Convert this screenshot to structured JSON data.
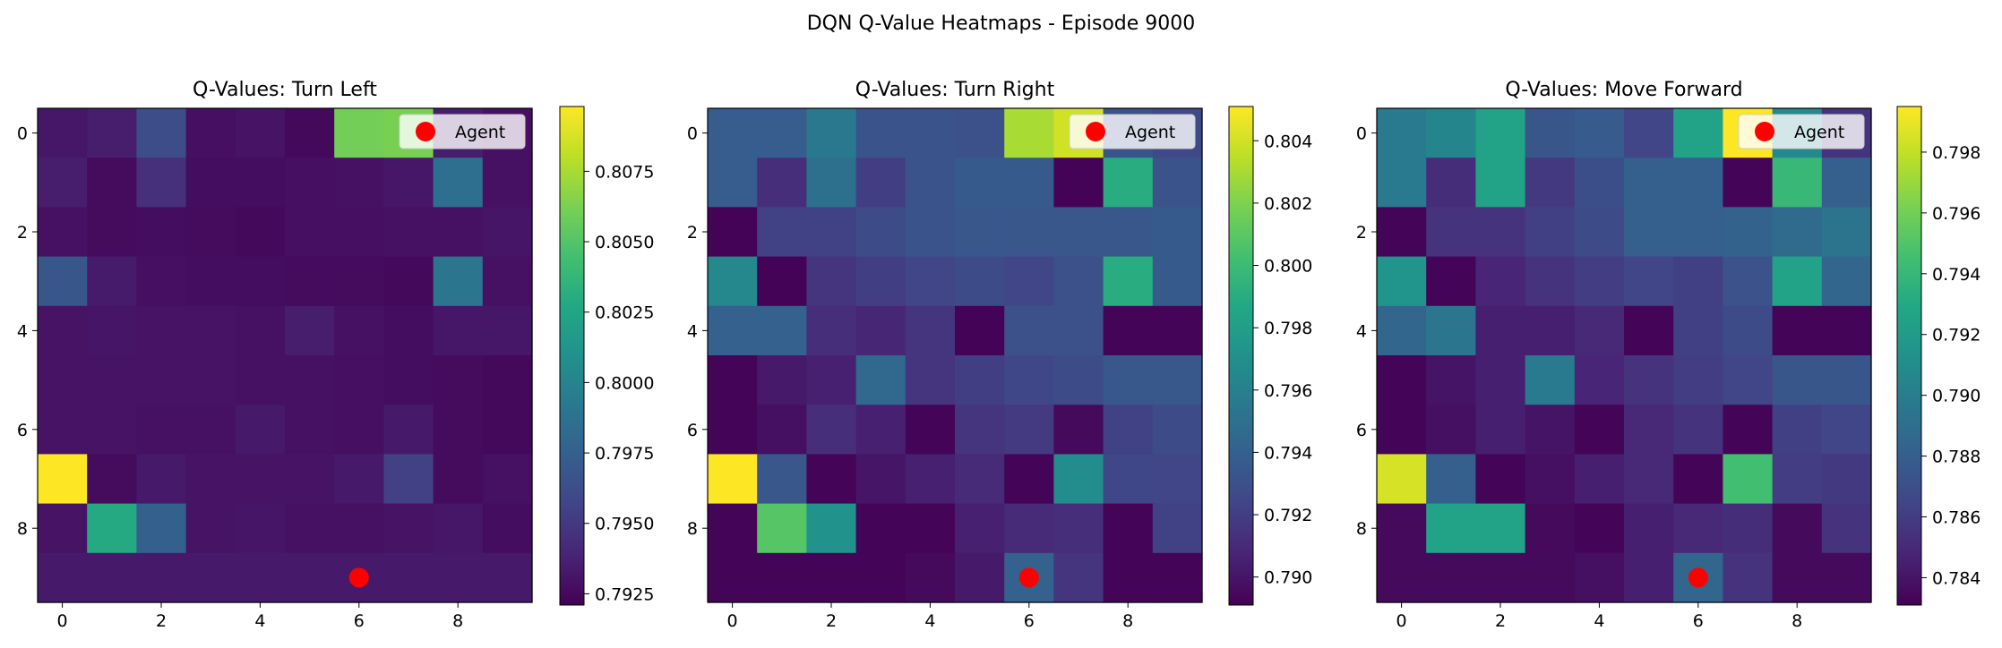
{
  "suptitle": "DQN Q-Value Heatmaps - Episode 9000",
  "colormap": "viridis",
  "chart_data": [
    {
      "type": "heatmap",
      "title": "Q-Values: Turn Left",
      "xticks": [
        "0",
        "2",
        "4",
        "6",
        "8"
      ],
      "yticks": [
        "0",
        "2",
        "4",
        "6",
        "8"
      ],
      "xlim": [
        -0.5,
        9.5
      ],
      "ylim": [
        9.5,
        -0.5
      ],
      "vmin": 0.7921,
      "vmax": 0.8098,
      "colorbar_ticks": [
        "0.7925",
        "0.7950",
        "0.7975",
        "0.8000",
        "0.8025",
        "0.8050",
        "0.8075"
      ],
      "agent": {
        "x": 6,
        "y": 9,
        "label": "Agent",
        "color": "#ff0000"
      },
      "values": [
        [
          0.7932,
          0.7935,
          0.7962,
          0.7928,
          0.793,
          0.7925,
          0.806,
          0.8062,
          0.7935,
          0.7929
        ],
        [
          0.7935,
          0.7926,
          0.7945,
          0.7927,
          0.7927,
          0.7928,
          0.7929,
          0.7932,
          0.7985,
          0.7929
        ],
        [
          0.7929,
          0.7926,
          0.7927,
          0.7926,
          0.7925,
          0.7928,
          0.7928,
          0.7929,
          0.7929,
          0.7931
        ],
        [
          0.7968,
          0.7934,
          0.7928,
          0.7927,
          0.7927,
          0.7926,
          0.7926,
          0.7925,
          0.799,
          0.7929
        ],
        [
          0.793,
          0.7931,
          0.793,
          0.793,
          0.7929,
          0.7935,
          0.7929,
          0.7927,
          0.7932,
          0.7932
        ],
        [
          0.793,
          0.793,
          0.793,
          0.793,
          0.7929,
          0.7929,
          0.7928,
          0.7927,
          0.7926,
          0.7925
        ],
        [
          0.793,
          0.793,
          0.7929,
          0.7929,
          0.7933,
          0.7929,
          0.7928,
          0.7933,
          0.7926,
          0.7925
        ],
        [
          0.8098,
          0.7926,
          0.7933,
          0.793,
          0.793,
          0.793,
          0.7933,
          0.7955,
          0.7926,
          0.7929
        ],
        [
          0.793,
          0.8028,
          0.7975,
          0.793,
          0.7931,
          0.7929,
          0.7929,
          0.793,
          0.7932,
          0.7927
        ],
        [
          0.7933,
          0.7933,
          0.7933,
          0.7933,
          0.7933,
          0.7933,
          0.7933,
          0.7933,
          0.7933,
          0.7933
        ]
      ]
    },
    {
      "type": "heatmap",
      "title": "Q-Values: Turn Right",
      "xticks": [
        "0",
        "2",
        "4",
        "6",
        "8"
      ],
      "yticks": [
        "0",
        "2",
        "4",
        "6",
        "8"
      ],
      "xlim": [
        -0.5,
        9.5
      ],
      "ylim": [
        9.5,
        -0.5
      ],
      "vmin": 0.7891,
      "vmax": 0.8051,
      "colorbar_ticks": [
        "0.790",
        "0.792",
        "0.794",
        "0.796",
        "0.798",
        "0.800",
        "0.802",
        "0.804"
      ],
      "agent": {
        "x": 6,
        "y": 9,
        "label": "Agent",
        "color": "#ff0000"
      },
      "values": [
        [
          0.7938,
          0.7938,
          0.7955,
          0.7932,
          0.7932,
          0.793,
          0.803,
          0.804,
          0.7932,
          0.7926
        ],
        [
          0.7938,
          0.7912,
          0.795,
          0.792,
          0.7932,
          0.7936,
          0.7936,
          0.7892,
          0.799,
          0.7932
        ],
        [
          0.7892,
          0.7922,
          0.7922,
          0.7928,
          0.7932,
          0.7934,
          0.7934,
          0.7934,
          0.7934,
          0.7936
        ],
        [
          0.7965,
          0.7892,
          0.7915,
          0.792,
          0.7924,
          0.7928,
          0.7924,
          0.793,
          0.799,
          0.7936
        ],
        [
          0.794,
          0.794,
          0.7912,
          0.7908,
          0.7915,
          0.7892,
          0.793,
          0.793,
          0.7893,
          0.7893
        ],
        [
          0.7893,
          0.7902,
          0.7905,
          0.7945,
          0.7915,
          0.792,
          0.7925,
          0.7928,
          0.7935,
          0.7935
        ],
        [
          0.7893,
          0.7898,
          0.7912,
          0.7905,
          0.7893,
          0.7915,
          0.7918,
          0.7895,
          0.7922,
          0.7928
        ],
        [
          0.8051,
          0.7934,
          0.7893,
          0.79,
          0.7905,
          0.791,
          0.7893,
          0.7968,
          0.7925,
          0.7924
        ],
        [
          0.7893,
          0.8008,
          0.7972,
          0.7893,
          0.7893,
          0.7905,
          0.791,
          0.7912,
          0.7893,
          0.7922
        ],
        [
          0.7893,
          0.7893,
          0.7893,
          0.7893,
          0.7895,
          0.7902,
          0.794,
          0.7915,
          0.7893,
          0.7893
        ]
      ]
    },
    {
      "type": "heatmap",
      "title": "Q-Values: Move Forward",
      "xticks": [
        "0",
        "2",
        "4",
        "6",
        "8"
      ],
      "yticks": [
        "0",
        "2",
        "4",
        "6",
        "8"
      ],
      "xlim": [
        -0.5,
        9.5
      ],
      "ylim": [
        9.5,
        -0.5
      ],
      "vmin": 0.7831,
      "vmax": 0.7995,
      "colorbar_ticks": [
        "0.784",
        "0.786",
        "0.788",
        "0.790",
        "0.792",
        "0.794",
        "0.796",
        "0.798"
      ],
      "agent": {
        "x": 6,
        "y": 9,
        "label": "Agent",
        "color": "#ff0000"
      },
      "values": [
        [
          0.7898,
          0.7905,
          0.7925,
          0.7875,
          0.7878,
          0.7865,
          0.7925,
          0.7995,
          0.7908,
          0.7855
        ],
        [
          0.7898,
          0.7852,
          0.7925,
          0.7858,
          0.787,
          0.788,
          0.788,
          0.7833,
          0.794,
          0.788
        ],
        [
          0.7833,
          0.7855,
          0.7855,
          0.7862,
          0.7868,
          0.788,
          0.788,
          0.7883,
          0.7888,
          0.7893
        ],
        [
          0.7915,
          0.7833,
          0.7848,
          0.7855,
          0.786,
          0.7865,
          0.7862,
          0.7872,
          0.7925,
          0.7885
        ],
        [
          0.7885,
          0.7895,
          0.7845,
          0.7845,
          0.785,
          0.7833,
          0.7862,
          0.7868,
          0.7833,
          0.7833
        ],
        [
          0.7833,
          0.784,
          0.7845,
          0.7898,
          0.7848,
          0.7855,
          0.786,
          0.7865,
          0.7875,
          0.7875
        ],
        [
          0.7833,
          0.7838,
          0.7845,
          0.784,
          0.7833,
          0.785,
          0.7855,
          0.7833,
          0.7862,
          0.7865
        ],
        [
          0.7985,
          0.788,
          0.7833,
          0.7838,
          0.7845,
          0.785,
          0.7833,
          0.7945,
          0.786,
          0.7858
        ],
        [
          0.7835,
          0.7925,
          0.7925,
          0.7835,
          0.7833,
          0.7845,
          0.785,
          0.7852,
          0.7835,
          0.7855
        ],
        [
          0.7835,
          0.7835,
          0.7835,
          0.7835,
          0.7838,
          0.7845,
          0.7885,
          0.7855,
          0.7835,
          0.7835
        ]
      ]
    }
  ]
}
